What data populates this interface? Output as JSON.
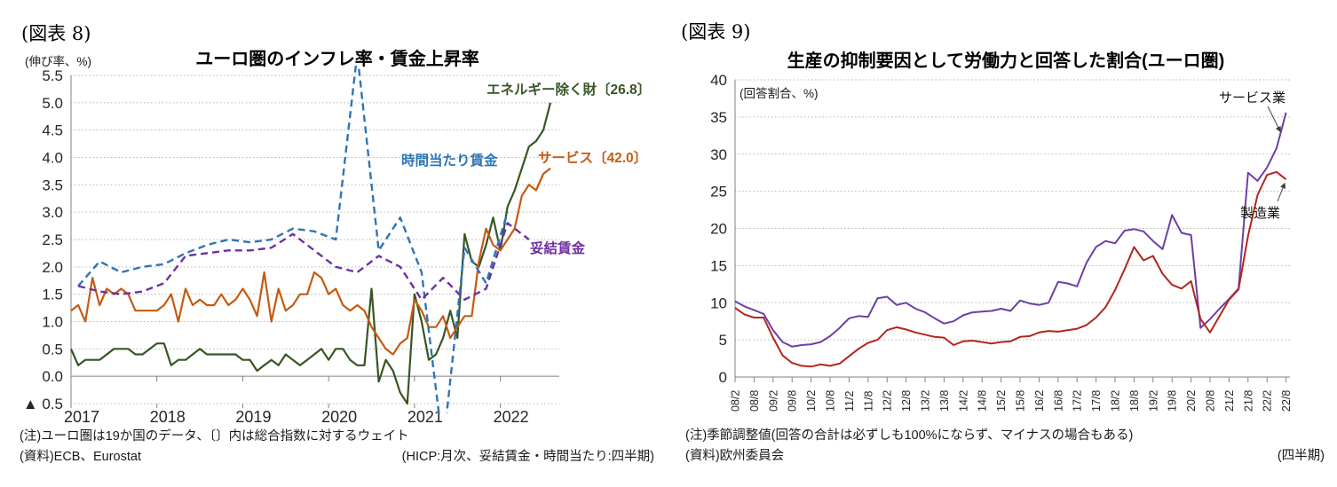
{
  "figures": [
    {
      "tag": "(図表 8)",
      "title": "ユーロ圏のインフレ率・賃金上昇率",
      "axis_caption": "(伸び率、%)",
      "notes": {
        "note1": "(注)ユーロ圏は19か国のデータ、〔〕内は総合指数に対するウェイト",
        "note2": "(資料)ECB、Eurostat",
        "note_right": "(HICP:月次、妥結賃金・時間当たり:四半期)"
      },
      "chart_data": {
        "type": "line",
        "title": "ユーロ圏のインフレ率・賃金上昇率",
        "ylabel": "(伸び率、%)",
        "ylim": [
          -0.5,
          5.5
        ],
        "ytick_labels": [
          "5.5",
          "5.0",
          "4.5",
          "4.0",
          "3.5",
          "3.0",
          "2.5",
          "2.0",
          "1.5",
          "1.0",
          "0.5",
          "0.0",
          "▲ 0.5"
        ],
        "x_years": [
          "2017",
          "2018",
          "2019",
          "2020",
          "2021",
          "2022"
        ],
        "x_range": "2017-01 to 2022-08",
        "grid": "dotted-horizontal",
        "series": [
          {
            "name": "エネルギー除く財〔26.8〕",
            "color": "#375623",
            "dash": "solid",
            "freq": "monthly",
            "start_month": 0,
            "step_months": 1,
            "values": [
              0.5,
              0.2,
              0.3,
              0.3,
              0.3,
              0.4,
              0.5,
              0.5,
              0.5,
              0.4,
              0.4,
              0.5,
              0.6,
              0.6,
              0.2,
              0.3,
              0.3,
              0.4,
              0.5,
              0.4,
              0.4,
              0.4,
              0.4,
              0.4,
              0.3,
              0.3,
              0.1,
              0.2,
              0.3,
              0.2,
              0.4,
              0.3,
              0.2,
              0.3,
              0.4,
              0.5,
              0.3,
              0.5,
              0.5,
              0.3,
              0.2,
              0.2,
              1.6,
              -0.1,
              0.3,
              0.1,
              -0.3,
              -0.5,
              1.5,
              1.0,
              0.3,
              0.4,
              0.7,
              1.2,
              0.7,
              2.6,
              2.1,
              2.0,
              2.4,
              2.9,
              2.3,
              3.1,
              3.4,
              3.8,
              4.2,
              4.3,
              4.5,
              5.0
            ]
          },
          {
            "name": "サービス〔42.0〕",
            "color": "#c55a11",
            "dash": "solid",
            "freq": "monthly",
            "start_month": 0,
            "step_months": 1,
            "values": [
              1.2,
              1.3,
              1.0,
              1.8,
              1.3,
              1.6,
              1.5,
              1.6,
              1.5,
              1.2,
              1.2,
              1.2,
              1.2,
              1.3,
              1.5,
              1.0,
              1.6,
              1.3,
              1.4,
              1.3,
              1.3,
              1.5,
              1.3,
              1.4,
              1.6,
              1.4,
              1.1,
              1.9,
              1.0,
              1.6,
              1.2,
              1.3,
              1.5,
              1.5,
              1.9,
              1.8,
              1.5,
              1.6,
              1.3,
              1.2,
              1.3,
              1.2,
              0.9,
              0.7,
              0.5,
              0.4,
              0.6,
              0.7,
              1.4,
              1.2,
              0.9,
              0.9,
              1.1,
              0.7,
              0.9,
              1.1,
              1.1,
              2.1,
              2.7,
              2.4,
              2.3,
              2.5,
              2.7,
              3.3,
              3.5,
              3.4,
              3.7,
              3.8
            ]
          },
          {
            "name": "時間当たり賃金",
            "color": "#2e75b6",
            "dash": "dashed",
            "freq": "quarterly",
            "start_month": 1,
            "step_months": 3,
            "values": [
              1.65,
              2.1,
              1.9,
              2.0,
              2.05,
              2.25,
              2.4,
              2.5,
              2.45,
              2.5,
              2.7,
              2.65,
              2.5,
              5.9,
              2.3,
              2.9,
              1.9,
              -1.3,
              2.35,
              1.7,
              3.0
            ]
          },
          {
            "name": "妥結賃金",
            "color": "#7030a0",
            "dash": "dashed",
            "freq": "quarterly",
            "start_month": 1,
            "step_months": 3,
            "values": [
              1.65,
              1.55,
              1.5,
              1.55,
              1.7,
              2.2,
              2.25,
              2.3,
              2.3,
              2.35,
              2.6,
              2.3,
              2.0,
              1.9,
              2.2,
              2.0,
              1.4,
              1.8,
              1.4,
              1.6,
              2.8,
              2.5
            ]
          }
        ]
      }
    },
    {
      "tag": "(図表 9)",
      "title": "生産の抑制要因として労働力と回答した割合(ユーロ圏)",
      "axis_caption": "(回答割合、%)",
      "notes": {
        "note1": "(注)季節調整値(回答の合計は必ずしも100%にならず、マイナスの場合もある)",
        "note2": "(資料)欧州委員会",
        "note_right": "(四半期)"
      },
      "chart_data": {
        "type": "line",
        "title": "生産の抑制要因として労働力と回答した割合(ユーロ圏)",
        "ylabel": "(回答割合、%)",
        "ylim": [
          0,
          40
        ],
        "ytick_step": 5,
        "xtick_labels": [
          "08/2",
          "08/8",
          "09/2",
          "09/8",
          "10/2",
          "10/8",
          "11/2",
          "11/8",
          "12/2",
          "12/8",
          "13/2",
          "13/8",
          "14/2",
          "14/8",
          "15/2",
          "15/8",
          "16/2",
          "16/8",
          "17/2",
          "17/8",
          "18/2",
          "18/8",
          "19/2",
          "19/8",
          "20/2",
          "20/8",
          "21/2",
          "21/8",
          "22/2",
          "22/8"
        ],
        "x_note": "quarterly, Feb/May/Aug/Nov 2008–2022",
        "grid": "dotted-horizontal",
        "series": [
          {
            "name": "サービス業",
            "color": "#6d3fa4",
            "dash": "solid",
            "values": [
              10.2,
              9.5,
              9.0,
              8.5,
              6.3,
              4.7,
              4.1,
              4.3,
              4.4,
              4.7,
              5.5,
              6.6,
              7.9,
              8.2,
              8.1,
              10.6,
              10.8,
              9.7,
              10.0,
              9.2,
              8.7,
              7.9,
              7.2,
              7.5,
              8.3,
              8.7,
              8.8,
              8.9,
              9.2,
              8.9,
              10.3,
              9.9,
              9.7,
              10.0,
              12.8,
              12.6,
              12.2,
              15.4,
              17.5,
              18.3,
              18.0,
              19.7,
              19.9,
              19.6,
              18.3,
              17.2,
              21.8,
              19.4,
              19.1,
              6.6,
              7.8,
              9.2,
              10.5,
              11.9,
              27.5,
              26.4,
              28.2,
              30.8,
              35.6
            ]
          },
          {
            "name": "製造業",
            "color": "#b3251e",
            "dash": "solid",
            "values": [
              9.3,
              8.4,
              8.0,
              8.0,
              5.3,
              2.9,
              1.9,
              1.5,
              1.4,
              1.7,
              1.5,
              1.8,
              2.8,
              3.8,
              4.6,
              5.0,
              6.3,
              6.7,
              6.4,
              6.0,
              5.7,
              5.4,
              5.3,
              4.3,
              4.8,
              4.9,
              4.7,
              4.5,
              4.7,
              4.8,
              5.4,
              5.5,
              6.0,
              6.2,
              6.1,
              6.3,
              6.5,
              7.0,
              8.0,
              9.4,
              11.7,
              14.5,
              17.5,
              15.7,
              16.3,
              13.9,
              12.4,
              11.9,
              12.9,
              7.8,
              6.0,
              8.2,
              10.4,
              11.8,
              19.0,
              24.5,
              27.2,
              27.6,
              26.6
            ]
          }
        ]
      }
    }
  ]
}
